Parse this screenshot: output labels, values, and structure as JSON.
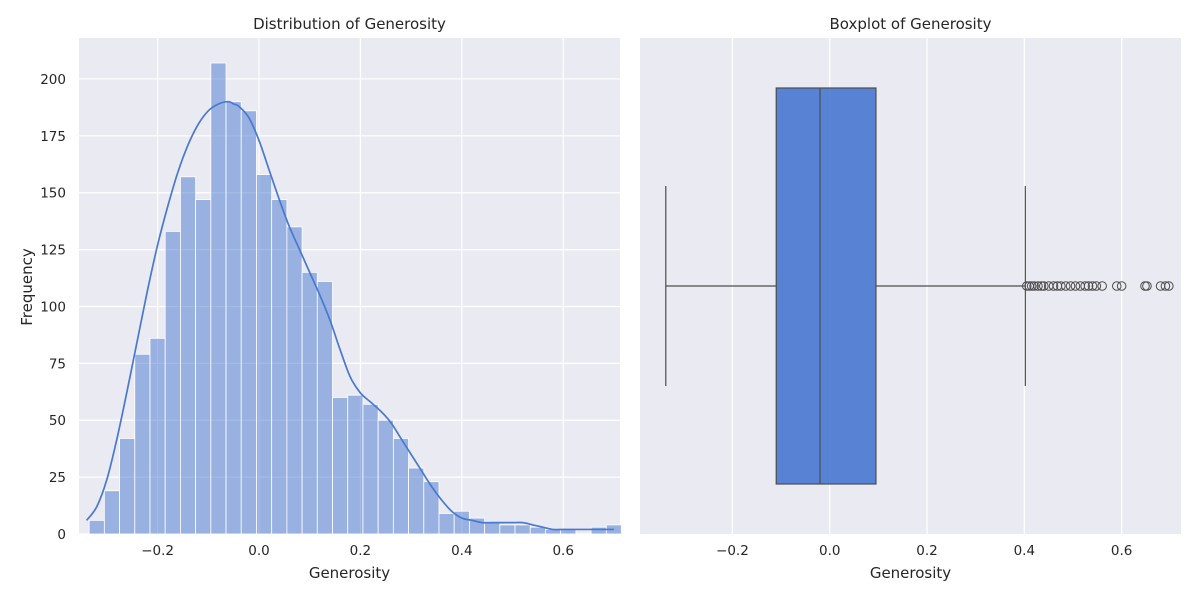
{
  "chart_data": [
    {
      "type": "bar",
      "subtype": "histogram-with-kde",
      "title": "Distribution of Generosity",
      "xlabel": "Generosity",
      "ylabel": "Frequency",
      "xlim": [
        -0.355,
        0.712
      ],
      "ylim": [
        0,
        218
      ],
      "xticks": [
        -0.2,
        0.0,
        0.2,
        0.4,
        0.6
      ],
      "xtick_labels": [
        "−0.2",
        "0.0",
        "0.2",
        "0.4",
        "0.6"
      ],
      "yticks": [
        0,
        25,
        50,
        75,
        100,
        125,
        150,
        175,
        200
      ],
      "ytick_labels": [
        "0",
        "25",
        "50",
        "75",
        "100",
        "125",
        "150",
        "175",
        "200"
      ],
      "grid": true,
      "bar_color": "#4878d0",
      "bin_start": -0.335,
      "bin_width": 0.03,
      "bin_counts": [
        6,
        19,
        42,
        79,
        86,
        133,
        157,
        147,
        207,
        190,
        186,
        158,
        147,
        135,
        115,
        111,
        60,
        61,
        57,
        50,
        42,
        29,
        23,
        9,
        10,
        7,
        5,
        4,
        4,
        3,
        2,
        2,
        0,
        3,
        4
      ],
      "kde": {
        "color": "#4878d0",
        "x": [
          -0.34,
          -0.32,
          -0.3,
          -0.28,
          -0.26,
          -0.24,
          -0.22,
          -0.2,
          -0.18,
          -0.16,
          -0.14,
          -0.12,
          -0.1,
          -0.08,
          -0.06,
          -0.05,
          -0.04,
          -0.02,
          0.0,
          0.02,
          0.04,
          0.06,
          0.08,
          0.1,
          0.12,
          0.14,
          0.16,
          0.18,
          0.2,
          0.22,
          0.24,
          0.26,
          0.28,
          0.3,
          0.32,
          0.34,
          0.36,
          0.38,
          0.4,
          0.42,
          0.44,
          0.46,
          0.48,
          0.5,
          0.52,
          0.54,
          0.56,
          0.58,
          0.6,
          0.62,
          0.64,
          0.66,
          0.68,
          0.7
        ],
        "y": [
          6,
          12,
          24,
          42,
          63,
          85,
          107,
          127,
          144,
          159,
          171,
          180,
          186,
          189,
          190,
          189,
          188,
          183,
          173,
          160,
          147,
          135,
          125,
          115,
          105,
          94,
          81,
          69,
          62,
          58,
          54,
          49,
          42,
          35,
          28,
          21,
          15,
          10,
          7,
          6,
          5,
          5,
          5,
          5,
          5,
          4,
          3,
          2,
          2,
          2,
          2,
          2,
          2,
          2
        ]
      }
    },
    {
      "type": "boxplot",
      "title": "Boxplot of Generosity",
      "xlabel": "Generosity",
      "xlim": [
        -0.39,
        0.722
      ],
      "xticks": [
        -0.2,
        0.0,
        0.2,
        0.4,
        0.6
      ],
      "xtick_labels": [
        "−0.2",
        "0.0",
        "0.2",
        "0.4",
        "0.6"
      ],
      "grid": true,
      "box_color": "#4878d0",
      "whisker_low": -0.337,
      "q1": -0.11,
      "median": -0.02,
      "q3": 0.095,
      "whisker_high": 0.402,
      "outliers": [
        0.405,
        0.41,
        0.415,
        0.42,
        0.428,
        0.435,
        0.44,
        0.45,
        0.46,
        0.468,
        0.475,
        0.485,
        0.495,
        0.505,
        0.515,
        0.525,
        0.532,
        0.54,
        0.548,
        0.56,
        0.59,
        0.6,
        0.648,
        0.652,
        0.68,
        0.69,
        0.697
      ]
    }
  ]
}
